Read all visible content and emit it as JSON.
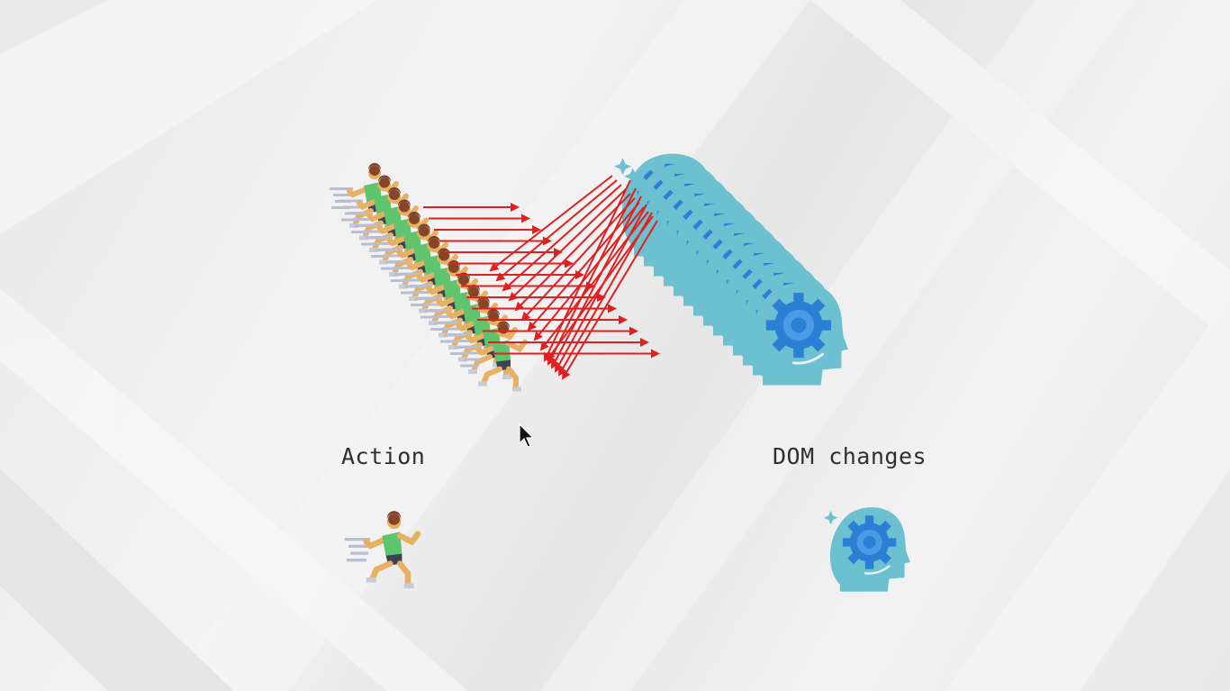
{
  "captions": {
    "action": "Action",
    "dom_changes": "DOM changes"
  },
  "icons": {
    "runner": "running-person-icon",
    "head_gear": "head-with-gear-icon",
    "arrows": "red-arrows",
    "cursor": "mouse-cursor-icon"
  },
  "colors": {
    "arrow_red": "#e02020",
    "head_teal": "#6cc0cf",
    "gear_blue": "#2b7fd4",
    "runner_shirt": "#5ec46e",
    "runner_skin": "#e8b062",
    "text": "#2f2f2f"
  }
}
